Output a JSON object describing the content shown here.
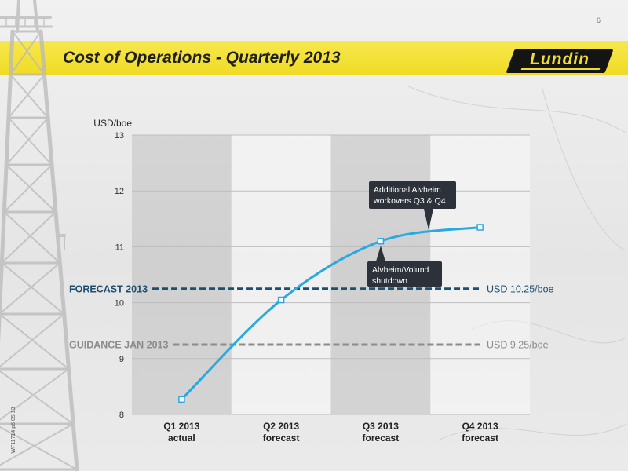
{
  "slide": {
    "page_number": "6",
    "footer_code": "WF11714 p6 05.13"
  },
  "logo": {
    "text": "Lundin"
  },
  "colors": {
    "banner": "#f1dd2b",
    "series_line": "#29a9e1",
    "forecast_line": "#1f4f70",
    "guidance_line": "#8c8c8c",
    "callout": "#2c313a"
  },
  "chart_data": {
    "type": "line",
    "title": "Cost of Operations - Quarterly 2013",
    "xlabel": "",
    "ylabel": "USD/boe",
    "ylim": [
      8,
      13
    ],
    "yticks": [
      8,
      9,
      10,
      11,
      12,
      13
    ],
    "categories": [
      "Q1 2013",
      "Q2 2013",
      "Q3 2013",
      "Q4 2013"
    ],
    "category_sublabels": [
      "actual",
      "forecast",
      "forecast",
      "forecast"
    ],
    "series": [
      {
        "values": [
          8.27,
          10.05,
          11.1,
          11.35
        ],
        "color": "#29a9e1",
        "marker": "square"
      }
    ],
    "reference_lines": [
      {
        "label": "FORECAST 2013",
        "value": 10.25,
        "value_label": "USD 10.25/boe",
        "color": "#1f4f70",
        "style": "dashed"
      },
      {
        "label": "GUIDANCE JAN 2013",
        "value": 9.25,
        "value_label": "USD 9.25/boe",
        "color": "#8c8c8c",
        "style": "dashed"
      }
    ],
    "annotations": [
      {
        "lines": [
          "Additional Alvheim",
          "workovers Q3 & Q4"
        ]
      },
      {
        "lines": [
          "Alvheim/Volund",
          "shutdown"
        ]
      }
    ],
    "grid": true,
    "legend": "none"
  }
}
